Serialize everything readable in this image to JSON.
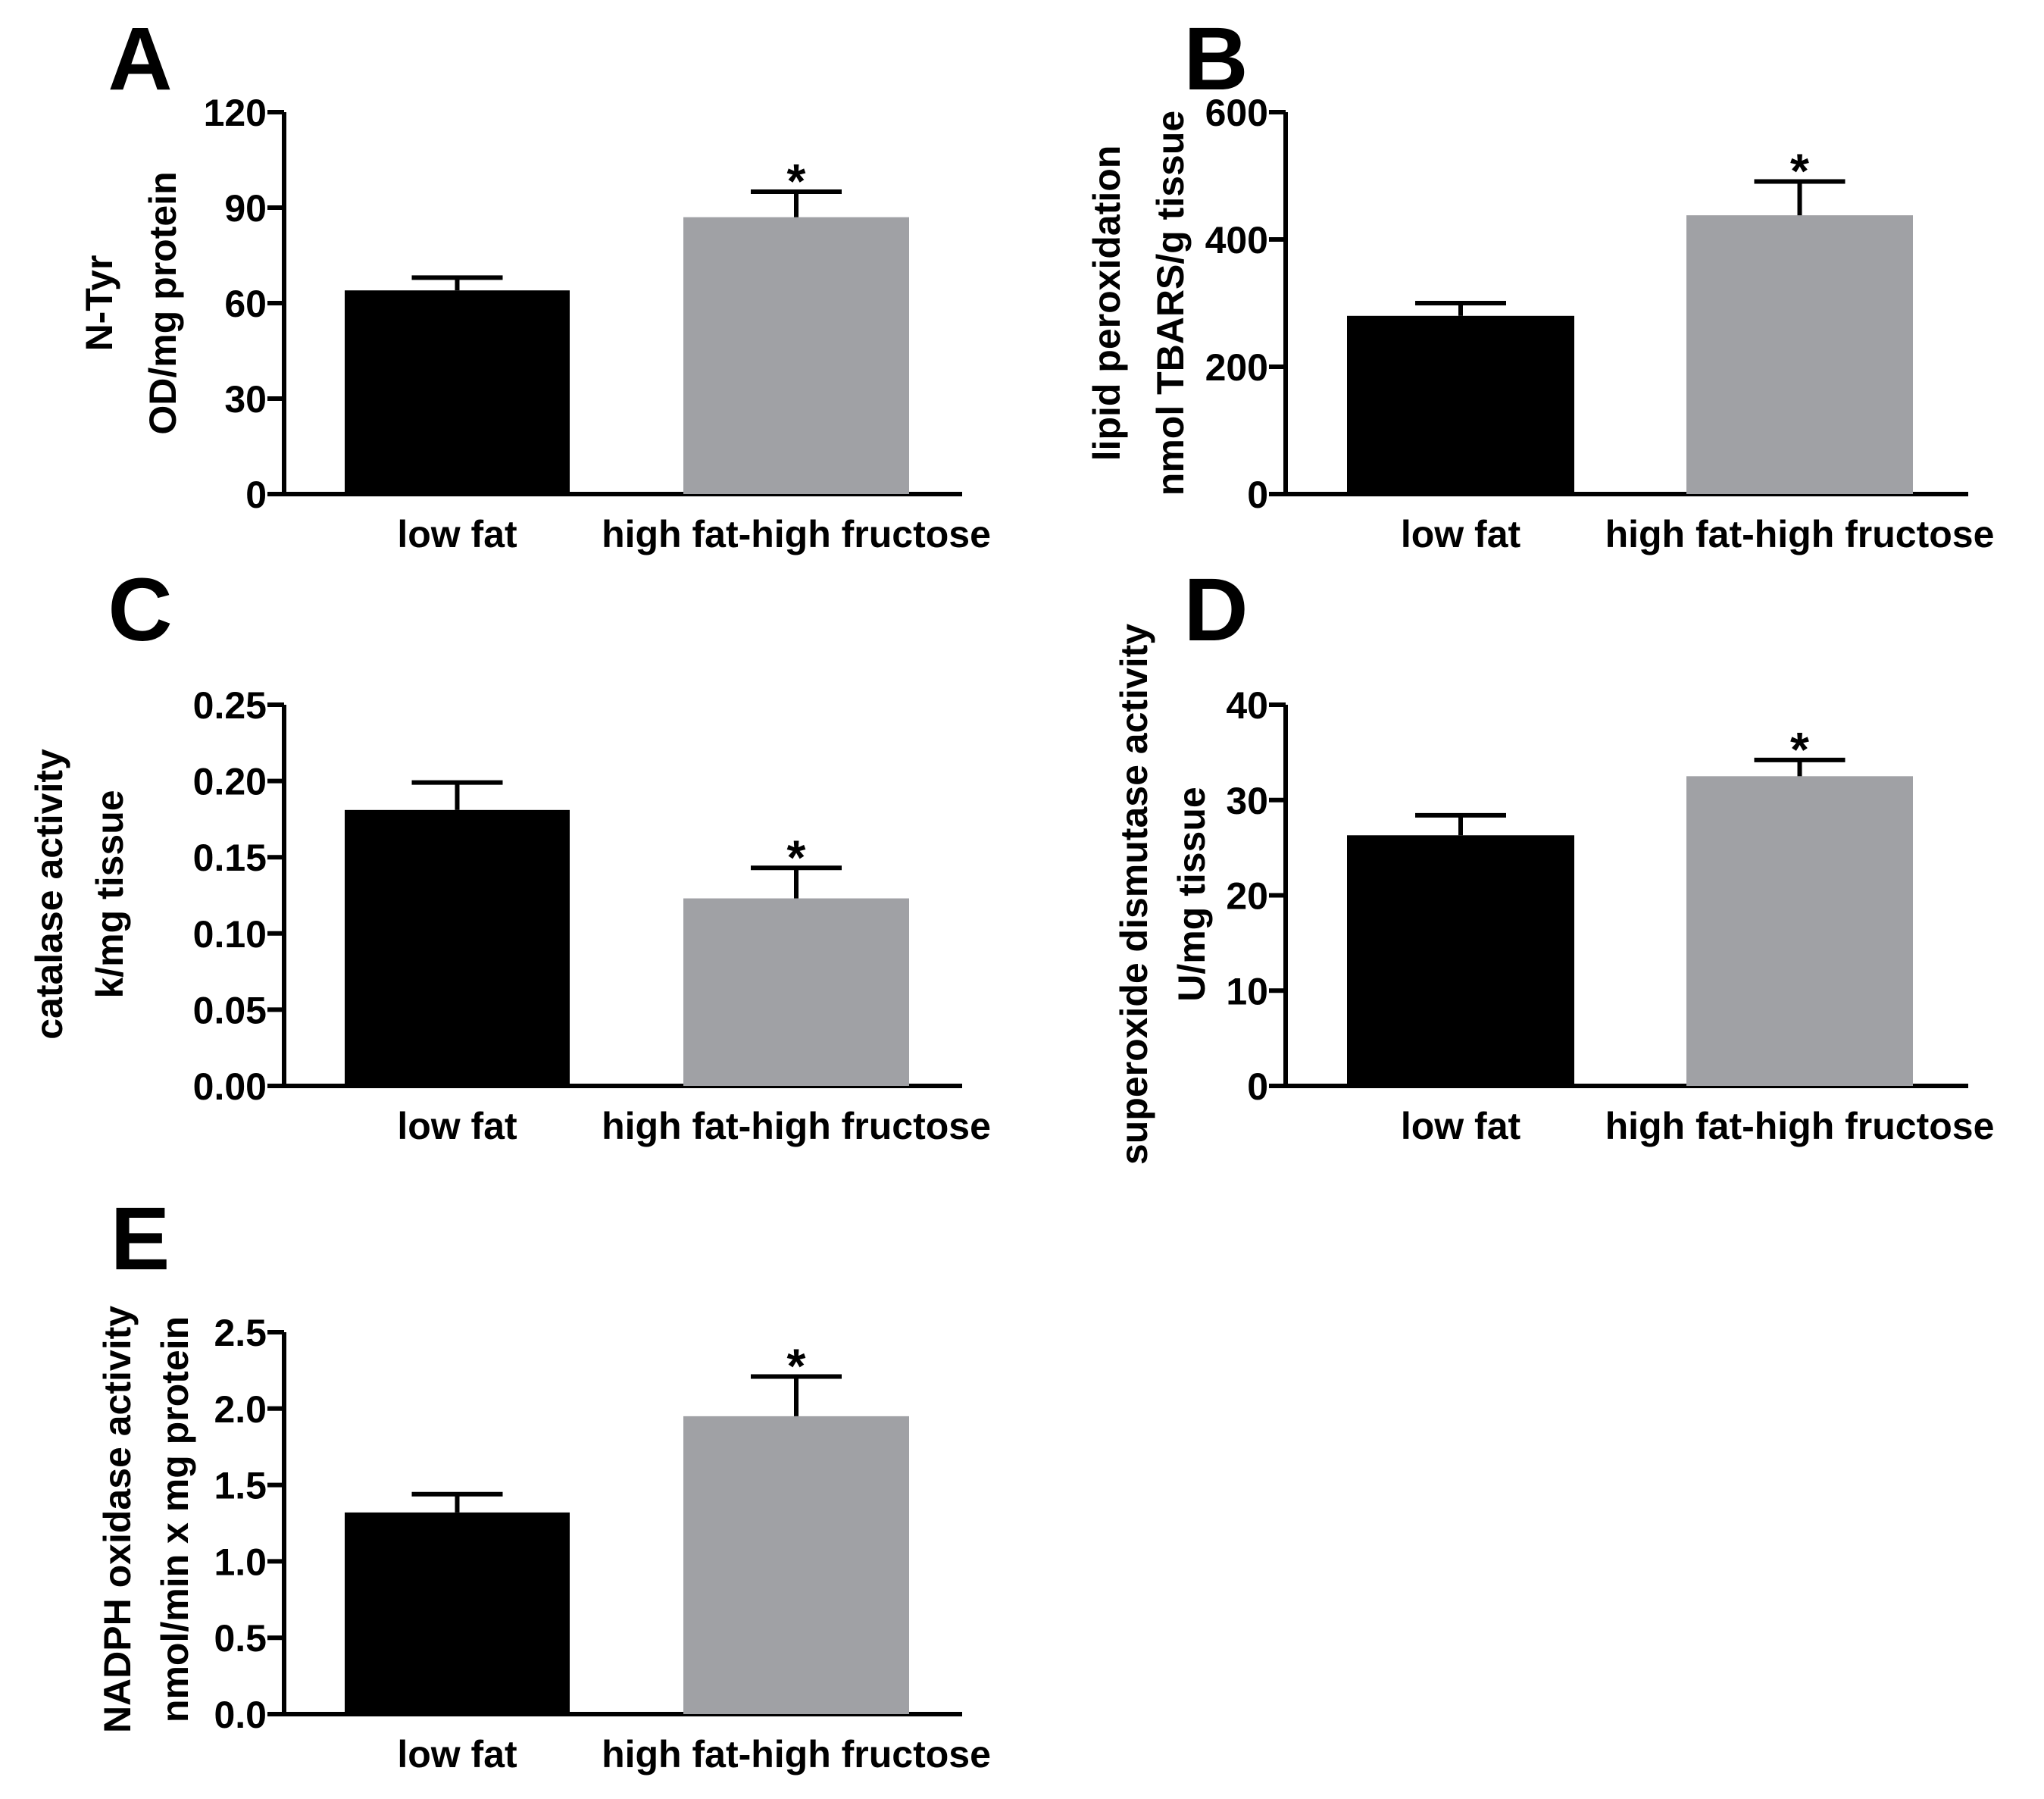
{
  "colors": {
    "low_fat": "#000000",
    "high_fat": "#a0a1a5",
    "axis": "#000000"
  },
  "chart_data": [
    {
      "type": "bar",
      "panel": "A",
      "categories": [
        "low fat",
        "high fat-high fructose"
      ],
      "values": [
        64,
        87
      ],
      "errors": [
        4,
        8
      ],
      "significance": [
        "",
        "*"
      ],
      "ylabel": [
        "N-Tyr",
        "OD/mg protein"
      ],
      "ylim": [
        0,
        120
      ],
      "yticks": [
        0,
        30,
        60,
        90,
        120
      ],
      "ytick_labels": [
        "0",
        "30",
        "60",
        "90",
        "120"
      ]
    },
    {
      "type": "bar",
      "panel": "B",
      "categories": [
        "low fat",
        "high fat-high fructose"
      ],
      "values": [
        280,
        438
      ],
      "errors": [
        20,
        53
      ],
      "significance": [
        "",
        "*"
      ],
      "ylabel": [
        "lipid peroxidation",
        "nmol TBARS/g tissue"
      ],
      "ylim": [
        0,
        600
      ],
      "yticks": [
        0,
        200,
        400,
        600
      ],
      "ytick_labels": [
        "0",
        "200",
        "400",
        "600"
      ]
    },
    {
      "type": "bar",
      "panel": "C",
      "categories": [
        "low fat",
        "high fat-high fructose"
      ],
      "values": [
        0.181,
        0.123
      ],
      "errors": [
        0.018,
        0.02
      ],
      "significance": [
        "",
        "*"
      ],
      "ylabel": [
        "catalase activity",
        "k/mg tissue"
      ],
      "ylim": [
        0,
        0.25
      ],
      "yticks": [
        0,
        0.05,
        0.1,
        0.15,
        0.2,
        0.25
      ],
      "ytick_labels": [
        "0.00",
        "0.05",
        "0.10",
        "0.15",
        "0.20",
        "0.25"
      ]
    },
    {
      "type": "bar",
      "panel": "D",
      "categories": [
        "low fat",
        "high fat-high fructose"
      ],
      "values": [
        26.3,
        32.5
      ],
      "errors": [
        2.1,
        1.7
      ],
      "significance": [
        "",
        "*"
      ],
      "ylabel": [
        "superoxide dismutase activity",
        "U/mg tissue"
      ],
      "ylim": [
        0,
        40
      ],
      "yticks": [
        0,
        10,
        20,
        30,
        40
      ],
      "ytick_labels": [
        "0",
        "10",
        "20",
        "30",
        "40"
      ]
    },
    {
      "type": "bar",
      "panel": "E",
      "categories": [
        "low fat",
        "high fat-high fructose"
      ],
      "values": [
        1.32,
        1.95
      ],
      "errors": [
        0.12,
        0.26
      ],
      "significance": [
        "",
        "*"
      ],
      "ylabel": [
        "NADPH oxidase activity",
        "nmol/min x mg protein"
      ],
      "ylim": [
        0,
        2.5
      ],
      "yticks": [
        0,
        0.5,
        1.0,
        1.5,
        2.0,
        2.5
      ],
      "ytick_labels": [
        "0.0",
        "0.5",
        "1.0",
        "1.5",
        "2.0",
        "2.5"
      ]
    }
  ]
}
